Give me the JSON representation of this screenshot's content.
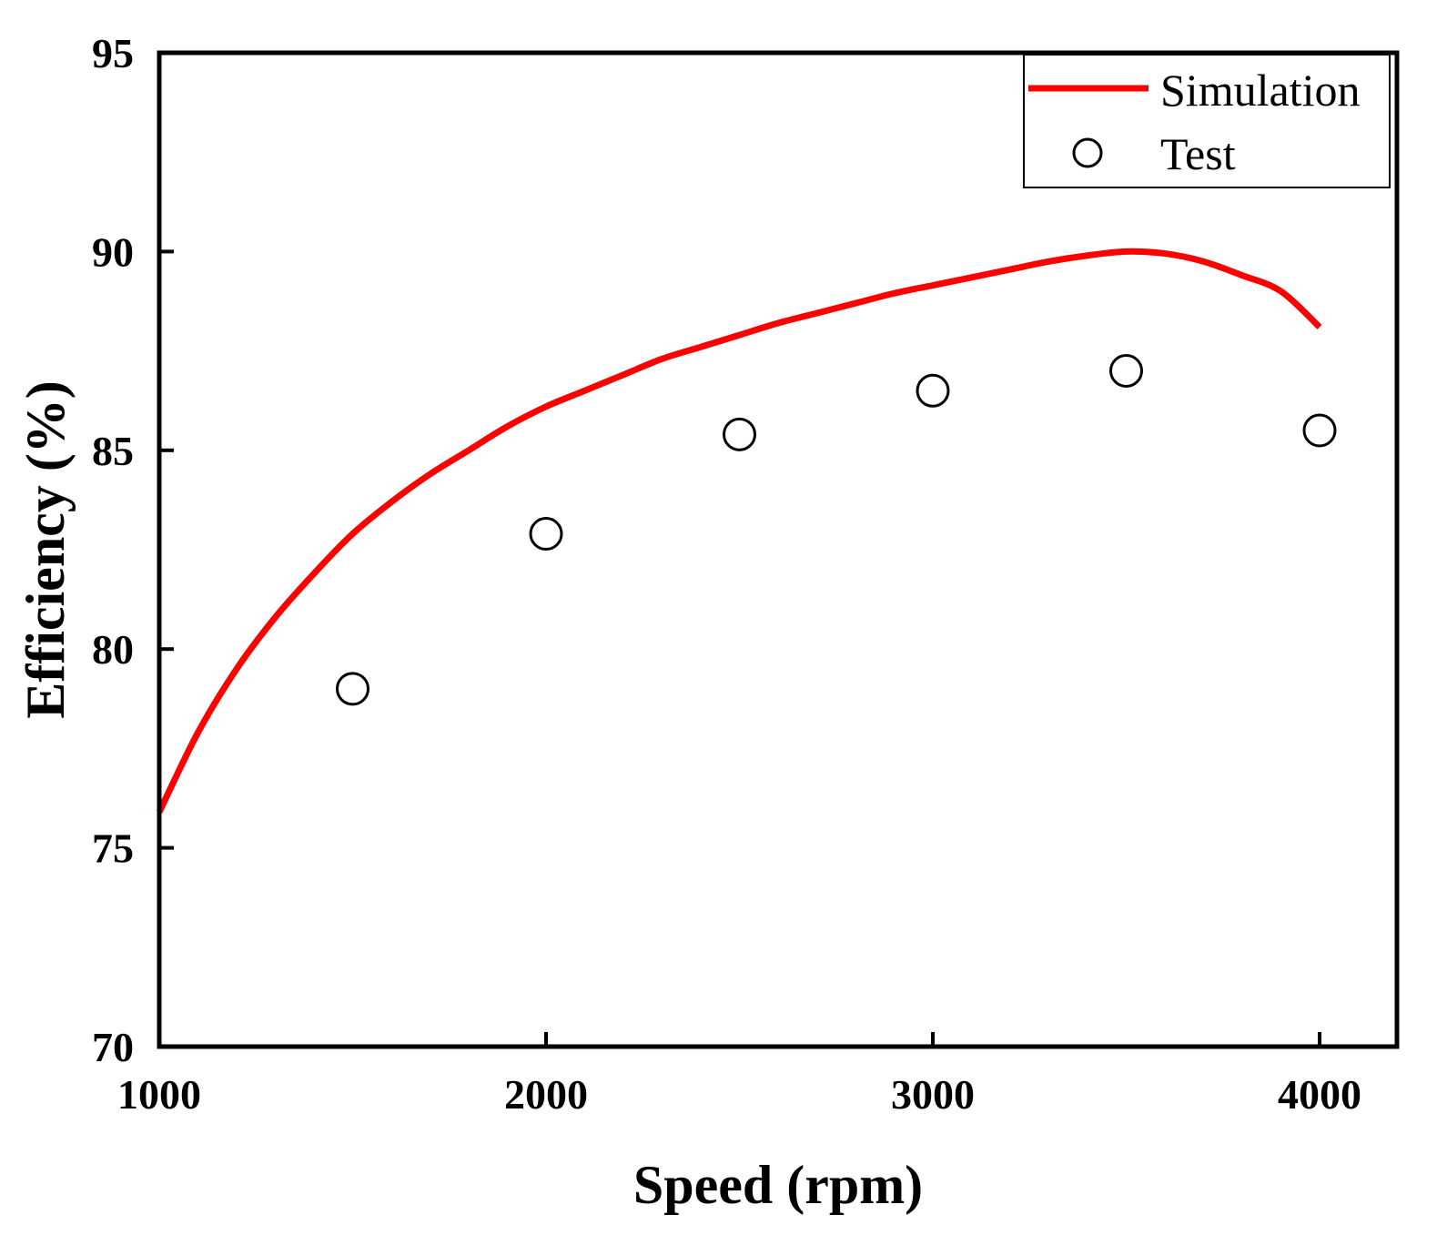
{
  "chart_data": {
    "type": "line",
    "title": "",
    "xlabel": "Speed (rpm)",
    "ylabel": "Efficiency (%)",
    "xlim": [
      1000,
      4200
    ],
    "ylim": [
      70,
      95
    ],
    "xticks": [
      1000,
      2000,
      3000,
      4000
    ],
    "yticks": [
      70,
      75,
      80,
      85,
      90,
      95
    ],
    "grid": false,
    "legend_position": "top-right",
    "series": [
      {
        "name": "Simulation",
        "kind": "line",
        "color": "#ff0000",
        "x": [
          1000,
          1100,
          1200,
          1300,
          1400,
          1500,
          1600,
          1700,
          1800,
          1900,
          2000,
          2100,
          2200,
          2300,
          2400,
          2500,
          2600,
          2700,
          2800,
          2900,
          3000,
          3100,
          3200,
          3300,
          3400,
          3500,
          3600,
          3700,
          3800,
          3900,
          4000
        ],
        "y": [
          75.9,
          77.9,
          79.5,
          80.8,
          81.9,
          82.9,
          83.7,
          84.4,
          85.0,
          85.6,
          86.1,
          86.5,
          86.9,
          87.3,
          87.6,
          87.9,
          88.2,
          88.45,
          88.7,
          88.95,
          89.15,
          89.35,
          89.55,
          89.75,
          89.9,
          90.0,
          89.95,
          89.75,
          89.4,
          89.0,
          88.1
        ]
      },
      {
        "name": "Test",
        "kind": "scatter",
        "color": "#000000",
        "x": [
          1500,
          2000,
          2500,
          3000,
          3500,
          4000
        ],
        "y": [
          79.0,
          82.9,
          85.4,
          86.5,
          87.0,
          85.5
        ]
      }
    ]
  }
}
